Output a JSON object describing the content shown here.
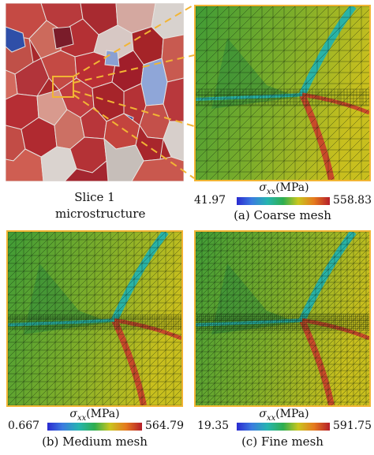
{
  "microstructure": {
    "caption_line1": "Slice 1",
    "caption_line2": "microstructure"
  },
  "panels": [
    {
      "key": "coarse",
      "caption": "(a) Coarse mesh",
      "colorbar": {
        "title_var": "σ",
        "title_sub": "xx",
        "title_unit": "(MPa)",
        "min": "41.97",
        "max": "558.83"
      }
    },
    {
      "key": "medium",
      "caption": "(b) Medium mesh",
      "colorbar": {
        "title_var": "σ",
        "title_sub": "xx",
        "title_unit": "(MPa)",
        "min": "0.667",
        "max": "564.79"
      }
    },
    {
      "key": "fine",
      "caption": "(c) Fine mesh",
      "colorbar": {
        "title_var": "σ",
        "title_sub": "xx",
        "title_unit": "(MPa)",
        "min": "19.35",
        "max": "591.75"
      }
    }
  ],
  "colors": {
    "zoom_frame": "#f2b534",
    "grain_red": "#b22a2e",
    "grain_light": "#d9d0cc",
    "grain_blue": "#7f9fd4",
    "field_green": "#3f9b36",
    "field_yellow": "#c8bf1e",
    "band_cyan": "#29b3a6",
    "band_red": "#c84a2a"
  }
}
